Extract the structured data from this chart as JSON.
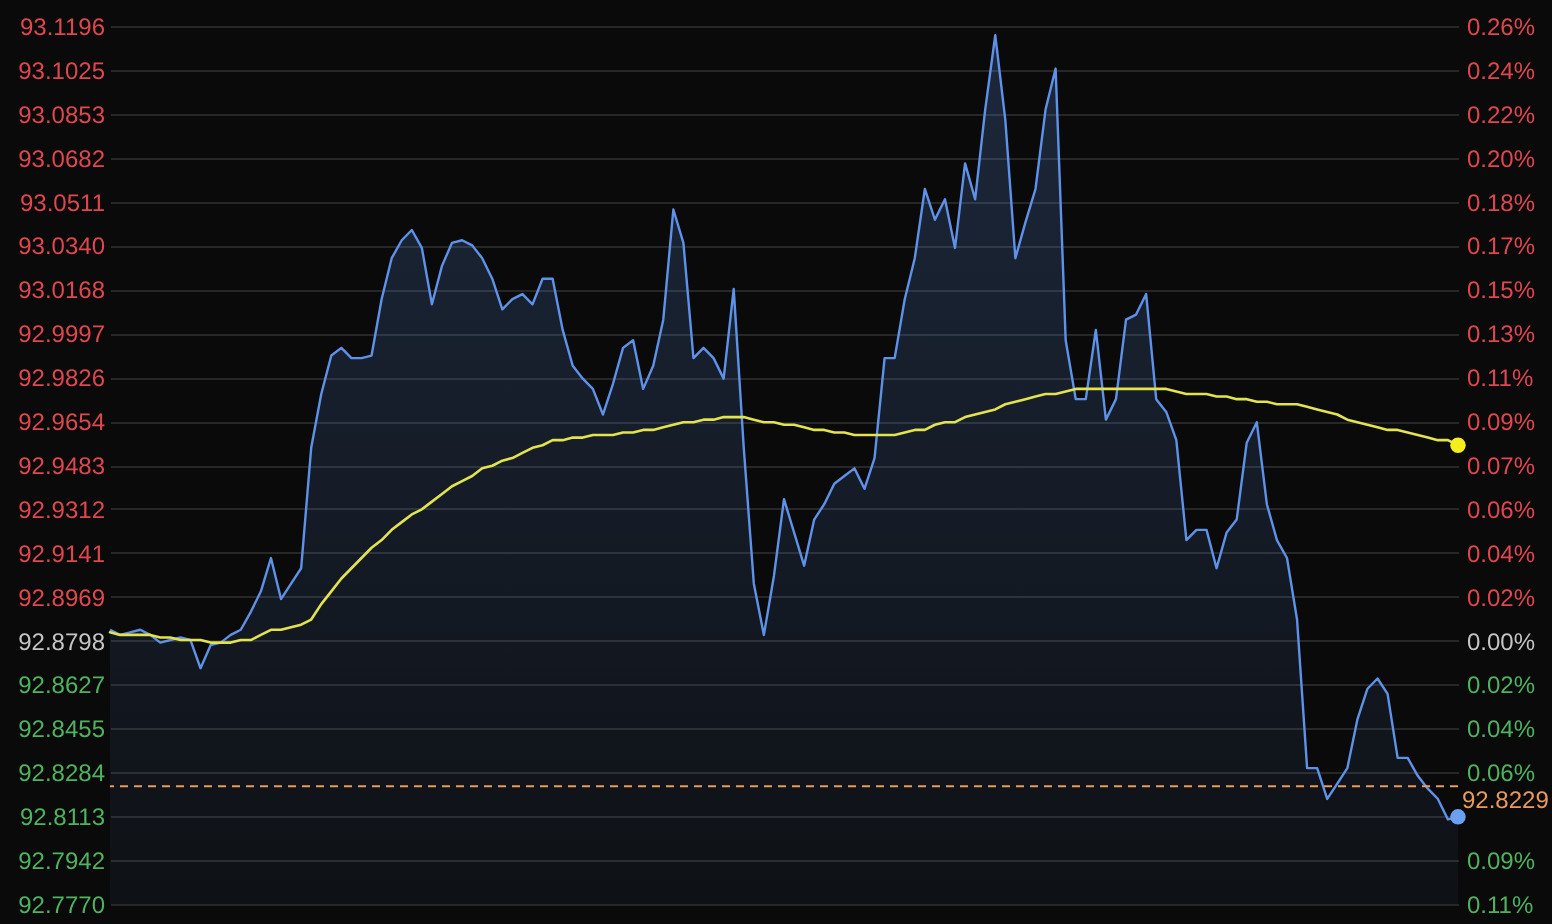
{
  "chart_data": {
    "type": "area",
    "categories": [
      null,
      null,
      null,
      null,
      null,
      null,
      null,
      null,
      null,
      null,
      null,
      null,
      null,
      null,
      null,
      null,
      null,
      null,
      null,
      null,
      null,
      null,
      null,
      null,
      null,
      null,
      null,
      null,
      null,
      null,
      null,
      null,
      null,
      null,
      null,
      null,
      null,
      null,
      null,
      null,
      null,
      null,
      null,
      null,
      null,
      null,
      null,
      null,
      null,
      null,
      null,
      null,
      null,
      null,
      null,
      null,
      null,
      null,
      null,
      null,
      null,
      null,
      null,
      null,
      null,
      null,
      null,
      null,
      null,
      null,
      null,
      null,
      null,
      null,
      null,
      null,
      null,
      null,
      null,
      null,
      null,
      null,
      null,
      null,
      null,
      null,
      null,
      null,
      null,
      null,
      null,
      null,
      null,
      null,
      null,
      null,
      null,
      null,
      null,
      null,
      null,
      null,
      null,
      null,
      null,
      null,
      null,
      null,
      null,
      null,
      null,
      null,
      null,
      null,
      null,
      null,
      null,
      null,
      null,
      null,
      null,
      null,
      null,
      null,
      null,
      null,
      null,
      null,
      null,
      null,
      null,
      null,
      null,
      null,
      null
    ],
    "series": [
      {
        "color": "#5d92e8",
        "values": [
          92.884,
          92.882,
          92.883,
          92.884,
          92.882,
          92.879,
          92.88,
          92.881,
          92.88,
          92.869,
          92.878,
          92.879,
          92.882,
          92.884,
          92.891,
          92.899,
          92.912,
          92.896,
          92.902,
          92.908,
          92.955,
          92.976,
          92.991,
          92.994,
          92.99,
          92.99,
          92.991,
          93.013,
          93.029,
          93.036,
          93.04,
          93.033,
          93.011,
          93.026,
          93.035,
          93.036,
          93.034,
          93.029,
          93.021,
          93.009,
          93.013,
          93.015,
          93.011,
          93.021,
          93.021,
          93.001,
          92.987,
          92.982,
          92.978,
          92.968,
          92.98,
          92.994,
          92.997,
          92.978,
          92.987,
          93.005,
          93.048,
          93.035,
          92.99,
          92.994,
          92.99,
          92.982,
          93.017,
          92.955,
          92.902,
          92.882,
          92.905,
          92.935,
          92.922,
          92.909,
          92.927,
          92.933,
          92.941,
          92.944,
          92.947,
          92.939,
          92.951,
          92.99,
          92.99,
          93.013,
          93.029,
          93.056,
          93.044,
          93.052,
          93.033,
          93.066,
          93.052,
          93.087,
          93.116,
          93.083,
          93.029,
          93.043,
          93.056,
          93.087,
          93.103,
          92.997,
          92.974,
          92.974,
          93.001,
          92.966,
          92.974,
          93.005,
          93.007,
          93.015,
          92.974,
          92.969,
          92.958,
          92.919,
          92.923,
          92.923,
          92.908,
          92.922,
          92.927,
          92.957,
          92.965,
          92.933,
          92.919,
          92.912,
          92.888,
          92.83,
          92.83,
          92.818,
          92.824,
          92.83,
          92.849,
          92.861,
          92.865,
          92.859,
          92.834,
          92.834,
          92.827,
          92.822,
          92.818,
          92.81,
          92.811
        ]
      },
      {
        "type": "line",
        "color": "#e3e34d",
        "values": [
          92.883,
          92.882,
          92.882,
          92.882,
          92.882,
          92.881,
          92.881,
          92.88,
          92.88,
          92.88,
          92.879,
          92.879,
          92.879,
          92.88,
          92.88,
          92.882,
          92.884,
          92.884,
          92.885,
          92.886,
          92.888,
          92.894,
          92.899,
          92.904,
          92.908,
          92.912,
          92.916,
          92.919,
          92.923,
          92.926,
          92.929,
          92.931,
          92.934,
          92.937,
          92.94,
          92.942,
          92.944,
          92.947,
          92.948,
          92.95,
          92.951,
          92.953,
          92.955,
          92.956,
          92.958,
          92.958,
          92.959,
          92.959,
          92.96,
          92.96,
          92.96,
          92.961,
          92.961,
          92.962,
          92.962,
          92.963,
          92.964,
          92.965,
          92.965,
          92.966,
          92.966,
          92.967,
          92.967,
          92.967,
          92.966,
          92.965,
          92.965,
          92.964,
          92.964,
          92.963,
          92.962,
          92.962,
          92.961,
          92.961,
          92.96,
          92.96,
          92.96,
          92.96,
          92.96,
          92.961,
          92.962,
          92.962,
          92.964,
          92.965,
          92.965,
          92.967,
          92.968,
          92.969,
          92.97,
          92.972,
          92.973,
          92.974,
          92.975,
          92.976,
          92.976,
          92.977,
          92.978,
          92.978,
          92.978,
          92.978,
          92.978,
          92.978,
          92.978,
          92.978,
          92.978,
          92.978,
          92.977,
          92.976,
          92.976,
          92.976,
          92.975,
          92.975,
          92.974,
          92.974,
          92.973,
          92.973,
          92.972,
          92.972,
          92.972,
          92.971,
          92.97,
          92.969,
          92.968,
          92.966,
          92.965,
          92.964,
          92.963,
          92.962,
          92.962,
          92.961,
          92.96,
          92.959,
          92.958,
          92.958,
          92.956
        ]
      },
      {
        "type": "scatter",
        "marker": "circle",
        "color": "#6aa0f0",
        "values": [
          null,
          null,
          null,
          null,
          null,
          null,
          null,
          null,
          null,
          null,
          null,
          null,
          null,
          null,
          null,
          null,
          null,
          null,
          null,
          null,
          null,
          null,
          null,
          null,
          null,
          null,
          null,
          null,
          null,
          null,
          null,
          null,
          null,
          null,
          null,
          null,
          null,
          null,
          null,
          null,
          null,
          null,
          null,
          null,
          null,
          null,
          null,
          null,
          null,
          null,
          null,
          null,
          null,
          null,
          null,
          null,
          null,
          null,
          null,
          null,
          null,
          null,
          null,
          null,
          null,
          null,
          null,
          null,
          null,
          null,
          null,
          null,
          null,
          null,
          null,
          null,
          null,
          null,
          null,
          null,
          null,
          null,
          null,
          null,
          null,
          null,
          null,
          null,
          null,
          null,
          null,
          null,
          null,
          null,
          null,
          null,
          null,
          null,
          null,
          null,
          null,
          null,
          null,
          null,
          null,
          null,
          null,
          null,
          null,
          null,
          null,
          null,
          null,
          null,
          null,
          null,
          null,
          null,
          null,
          null,
          null,
          null,
          null,
          null,
          null,
          null,
          null,
          null,
          null,
          null,
          null,
          null,
          null,
          null,
          92.811
        ]
      },
      {
        "type": "scatter",
        "marker": "circle",
        "color": "#f5ee1c",
        "values": [
          null,
          null,
          null,
          null,
          null,
          null,
          null,
          null,
          null,
          null,
          null,
          null,
          null,
          null,
          null,
          null,
          null,
          null,
          null,
          null,
          null,
          null,
          null,
          null,
          null,
          null,
          null,
          null,
          null,
          null,
          null,
          null,
          null,
          null,
          null,
          null,
          null,
          null,
          null,
          null,
          null,
          null,
          null,
          null,
          null,
          null,
          null,
          null,
          null,
          null,
          null,
          null,
          null,
          null,
          null,
          null,
          null,
          null,
          null,
          null,
          null,
          null,
          null,
          null,
          null,
          null,
          null,
          null,
          null,
          null,
          null,
          null,
          null,
          null,
          null,
          null,
          null,
          null,
          null,
          null,
          null,
          null,
          null,
          null,
          null,
          null,
          null,
          null,
          null,
          null,
          null,
          null,
          null,
          null,
          null,
          null,
          null,
          null,
          null,
          null,
          null,
          null,
          null,
          null,
          null,
          null,
          null,
          null,
          null,
          null,
          null,
          null,
          null,
          null,
          null,
          null,
          null,
          null,
          null,
          null,
          null,
          null,
          null,
          null,
          null,
          null,
          null,
          null,
          null,
          null,
          null,
          null,
          null,
          null,
          92.956
        ]
      }
    ],
    "ylim": [
      92.777,
      93.1196
    ],
    "yticks": [
      {
        "value": 92.777,
        "label": "92.7770"
      },
      92.7942,
      92.8113,
      92.8284,
      92.8455,
      92.8627,
      92.8798,
      92.8969,
      92.9141,
      92.9312,
      92.9483,
      92.9654,
      92.9826,
      92.9997,
      93.0168,
      {
        "value": 93.034,
        "label": "93.0340"
      },
      93.0511,
      93.0682,
      93.0853,
      93.1025,
      93.1196
    ],
    "y2lim": [
      -0.1107,
      0.2582
    ],
    "y2ticks": [
      {
        "value": -0.1107,
        "label": "0.11%"
      },
      {
        "value": -0.0922,
        "label": "0.09%"
      },
      {
        "value": -0.0553,
        "label": "0.06%"
      },
      {
        "value": -0.0369,
        "label": "0.04%"
      },
      {
        "value": -0.0184,
        "label": "0.02%"
      },
      {
        "value": 0,
        "label": "0.00%"
      },
      {
        "value": 0.0184,
        "label": "0.02%"
      },
      {
        "value": 0.0369,
        "label": "0.04%"
      },
      {
        "value": 0.0553,
        "label": "0.06%"
      },
      {
        "value": 0.0738,
        "label": "0.07%"
      },
      {
        "value": 0.0922,
        "label": "0.09%"
      },
      {
        "value": 0.1107,
        "label": "0.11%"
      },
      {
        "value": 0.1291,
        "label": "0.13%"
      },
      {
        "value": 0.1475,
        "label": "0.15%"
      },
      {
        "value": 0.166,
        "label": "0.17%"
      },
      {
        "value": 0.1844,
        "label": "0.18%"
      },
      {
        "value": 0.2029,
        "label": "0.20%"
      },
      {
        "value": 0.2213,
        "label": "0.22%"
      },
      {
        "value": 0.2397,
        "label": "0.24%"
      },
      {
        "value": 0.2582,
        "label": "0.26%"
      }
    ],
    "grid": "y",
    "ref_lines": [
      {
        "axis": "y",
        "value": 92.8229,
        "label": "92.8229",
        "color": "#e89a5a",
        "line_style": "dashed"
      }
    ]
  }
}
